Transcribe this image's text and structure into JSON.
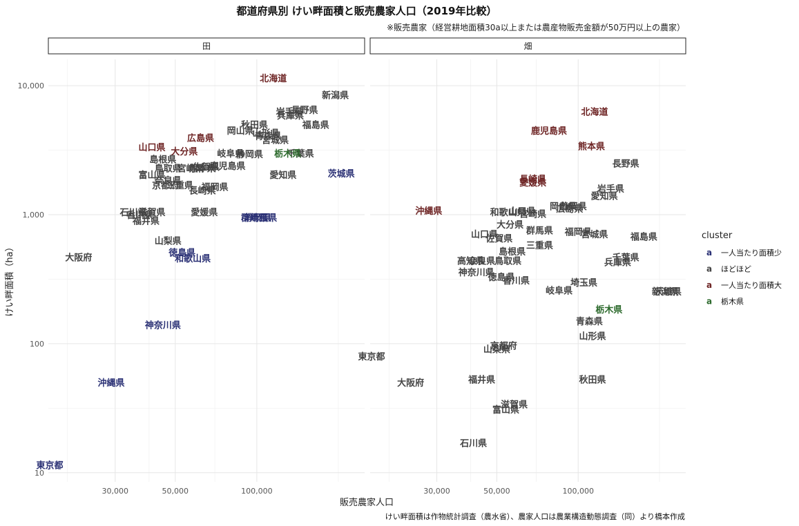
{
  "chart_data": {
    "type": "scatter",
    "title": "都道府県別 けい畔面積と販売農家人口（2019年比較）",
    "subtitle": "※販売農家（経営耕地面積30a以上または農産物販売金額が50万円以上の農家）",
    "caption": "けい畔面積は作物統計調査（農水省）、農家人口は農業構造動態調査（同）より橋本作成",
    "xlabel": "販売農家人口",
    "ylabel": "けい畔面積（ha）",
    "x_scale": "log",
    "y_scale": "log",
    "xlim": [
      17000,
      250000
    ],
    "ylim": [
      8.5,
      16000
    ],
    "x_ticks": [
      30000,
      50000,
      100000
    ],
    "x_tick_labels": [
      "30,000",
      "50,000",
      "100,000"
    ],
    "y_ticks": [
      10,
      100,
      1000,
      10000
    ],
    "y_tick_labels": [
      "10",
      "100",
      "1,000",
      "10,000"
    ],
    "grid": true,
    "legend": {
      "title": "cluster",
      "position": "right",
      "key_glyph": "a",
      "entries": [
        {
          "label": "一人当たり面積少",
          "color": "#2b3175"
        },
        {
          "label": "ほどほど",
          "color": "#444444"
        },
        {
          "label": "一人当たり面積大",
          "color": "#6e2525"
        },
        {
          "label": "栃木県",
          "color": "#2e6b2e"
        }
      ]
    },
    "facets": [
      {
        "name": "田",
        "points": [
          {
            "label": "北海道",
            "x": 115000,
            "y": 11500,
            "cluster": "一人当たり面積大"
          },
          {
            "label": "新潟県",
            "x": 195000,
            "y": 8500,
            "cluster": "ほどほど"
          },
          {
            "label": "長野県",
            "x": 150000,
            "y": 6500,
            "cluster": "ほどほど"
          },
          {
            "label": "岩手県",
            "x": 132000,
            "y": 6300,
            "cluster": "ほどほど"
          },
          {
            "label": "兵庫県",
            "x": 133000,
            "y": 5900,
            "cluster": "ほどほど"
          },
          {
            "label": "福島県",
            "x": 165000,
            "y": 5000,
            "cluster": "ほどほど"
          },
          {
            "label": "秋田県",
            "x": 98000,
            "y": 5000,
            "cluster": "ほどほど"
          },
          {
            "label": "岡山県",
            "x": 87000,
            "y": 4500,
            "cluster": "ほどほど"
          },
          {
            "label": "山形県",
            "x": 108000,
            "y": 4300,
            "cluster": "ほどほど"
          },
          {
            "label": "青森県",
            "x": 110000,
            "y": 4100,
            "cluster": "ほどほど"
          },
          {
            "label": "宮城県",
            "x": 117000,
            "y": 3800,
            "cluster": "ほどほど"
          },
          {
            "label": "広島県",
            "x": 62000,
            "y": 3950,
            "cluster": "一人当たり面積大"
          },
          {
            "label": "山口県",
            "x": 41000,
            "y": 3350,
            "cluster": "一人当たり面積大"
          },
          {
            "label": "大分県",
            "x": 54000,
            "y": 3100,
            "cluster": "一人当たり面積大"
          },
          {
            "label": "岐阜県",
            "x": 80000,
            "y": 3000,
            "cluster": "ほどほど"
          },
          {
            "label": "静岡県",
            "x": 94000,
            "y": 2950,
            "cluster": "ほどほど"
          },
          {
            "label": "千葉県",
            "x": 145000,
            "y": 3000,
            "cluster": "ほどほど"
          },
          {
            "label": "栃木県",
            "x": 130000,
            "y": 3000,
            "cluster": "栃木県"
          },
          {
            "label": "島根県",
            "x": 45000,
            "y": 2700,
            "cluster": "ほどほど"
          },
          {
            "label": "鹿児島県",
            "x": 78000,
            "y": 2400,
            "cluster": "ほどほど"
          },
          {
            "label": "佐賀県",
            "x": 65000,
            "y": 2350,
            "cluster": "ほどほど"
          },
          {
            "label": "鳥取県",
            "x": 47000,
            "y": 2300,
            "cluster": "ほどほど"
          },
          {
            "label": "熊本県",
            "x": 63000,
            "y": 2300,
            "cluster": "ほどほど"
          },
          {
            "label": "宮崎県",
            "x": 57000,
            "y": 2300,
            "cluster": "ほどほど"
          },
          {
            "label": "富山県",
            "x": 41000,
            "y": 2050,
            "cluster": "ほどほど"
          },
          {
            "label": "愛知県",
            "x": 125000,
            "y": 2050,
            "cluster": "ほどほど"
          },
          {
            "label": "茨城県",
            "x": 205000,
            "y": 2100,
            "cluster": "一人当たり面積少"
          },
          {
            "label": "奈良県",
            "x": 47000,
            "y": 1850,
            "cluster": "ほどほど"
          },
          {
            "label": "京都府",
            "x": 46000,
            "y": 1700,
            "cluster": "ほどほど"
          },
          {
            "label": "三重県",
            "x": 52000,
            "y": 1700,
            "cluster": "ほどほど"
          },
          {
            "label": "福岡県",
            "x": 70000,
            "y": 1650,
            "cluster": "ほどほど"
          },
          {
            "label": "長崎県",
            "x": 63000,
            "y": 1550,
            "cluster": "ほどほど"
          },
          {
            "label": "石川県",
            "x": 35000,
            "y": 1050,
            "cluster": "ほどほど"
          },
          {
            "label": "滋賀県",
            "x": 41000,
            "y": 1050,
            "cluster": "ほどほど"
          },
          {
            "label": "香川県",
            "x": 37000,
            "y": 1000,
            "cluster": "ほどほど"
          },
          {
            "label": "福井県",
            "x": 39000,
            "y": 900,
            "cluster": "ほどほど"
          },
          {
            "label": "愛媛県",
            "x": 64000,
            "y": 1050,
            "cluster": "ほどほど"
          },
          {
            "label": "群馬県",
            "x": 98000,
            "y": 950,
            "cluster": "一人当たり面積少"
          },
          {
            "label": "静岡県",
            "x": 101000,
            "y": 950,
            "cluster": "一人当たり面積少"
          },
          {
            "label": "埼玉県",
            "x": 106000,
            "y": 950,
            "cluster": "一人当たり面積少"
          },
          {
            "label": "山梨県",
            "x": 47000,
            "y": 630,
            "cluster": "ほどほど"
          },
          {
            "label": "徳島県",
            "x": 53000,
            "y": 510,
            "cluster": "一人当たり面積少"
          },
          {
            "label": "和歌山県",
            "x": 58000,
            "y": 460,
            "cluster": "一人当たり面積少"
          },
          {
            "label": "大阪府",
            "x": 22000,
            "y": 470,
            "cluster": "ほどほど"
          },
          {
            "label": "神奈川県",
            "x": 45000,
            "y": 140,
            "cluster": "一人当たり面積少"
          },
          {
            "label": "沖縄県",
            "x": 29000,
            "y": 50,
            "cluster": "一人当たり面積少"
          },
          {
            "label": "東京都",
            "x": 17200,
            "y": 11.5,
            "cluster": "一人当たり面積少"
          }
        ]
      },
      {
        "name": "畑",
        "points": [
          {
            "label": "北海道",
            "x": 115000,
            "y": 6300,
            "cluster": "一人当たり面積大"
          },
          {
            "label": "鹿児島県",
            "x": 78000,
            "y": 4500,
            "cluster": "一人当たり面積大"
          },
          {
            "label": "熊本県",
            "x": 112000,
            "y": 3400,
            "cluster": "一人当たり面積大"
          },
          {
            "label": "長野県",
            "x": 150000,
            "y": 2500,
            "cluster": "ほどほど"
          },
          {
            "label": "長崎県",
            "x": 68000,
            "y": 1900,
            "cluster": "一人当たり面積大"
          },
          {
            "label": "愛媛県",
            "x": 68000,
            "y": 1780,
            "cluster": "一人当たり面積大"
          },
          {
            "label": "岩手県",
            "x": 132000,
            "y": 1600,
            "cluster": "ほどほど"
          },
          {
            "label": "愛知県",
            "x": 125000,
            "y": 1400,
            "cluster": "ほどほど"
          },
          {
            "label": "岡山県",
            "x": 88000,
            "y": 1170,
            "cluster": "ほどほど"
          },
          {
            "label": "静岡県",
            "x": 96000,
            "y": 1170,
            "cluster": "ほどほど"
          },
          {
            "label": "広島県",
            "x": 93000,
            "y": 1120,
            "cluster": "ほどほど"
          },
          {
            "label": "沖縄県",
            "x": 28000,
            "y": 1080,
            "cluster": "一人当たり面積大"
          },
          {
            "label": "和歌山県",
            "x": 55000,
            "y": 1050,
            "cluster": "ほどほど"
          },
          {
            "label": "山口県",
            "x": 62000,
            "y": 1070,
            "cluster": "ほどほど"
          },
          {
            "label": "宮崎県",
            "x": 68000,
            "y": 1020,
            "cluster": "ほどほど"
          },
          {
            "label": "大分県",
            "x": 56000,
            "y": 840,
            "cluster": "ほどほど"
          },
          {
            "label": "群馬県",
            "x": 72000,
            "y": 760,
            "cluster": "ほどほど"
          },
          {
            "label": "山口県",
            "x": 45000,
            "y": 710,
            "cluster": "ほどほど"
          },
          {
            "label": "福岡県",
            "x": 100000,
            "y": 740,
            "cluster": "ほどほど"
          },
          {
            "label": "宮城県",
            "x": 115000,
            "y": 710,
            "cluster": "ほどほど"
          },
          {
            "label": "福島県",
            "x": 175000,
            "y": 680,
            "cluster": "ほどほど"
          },
          {
            "label": "佐賀県",
            "x": 51000,
            "y": 660,
            "cluster": "ほどほど"
          },
          {
            "label": "三重県",
            "x": 72000,
            "y": 580,
            "cluster": "ほどほど"
          },
          {
            "label": "島根県",
            "x": 57000,
            "y": 520,
            "cluster": "ほどほど"
          },
          {
            "label": "千葉県",
            "x": 150000,
            "y": 470,
            "cluster": "ほどほど"
          },
          {
            "label": "兵庫県",
            "x": 140000,
            "y": 430,
            "cluster": "ほどほど"
          },
          {
            "label": "高知県",
            "x": 40000,
            "y": 440,
            "cluster": "ほどほど"
          },
          {
            "label": "奈良県",
            "x": 44000,
            "y": 440,
            "cluster": "ほどほど"
          },
          {
            "label": "鳥取県",
            "x": 55000,
            "y": 440,
            "cluster": "ほどほど"
          },
          {
            "label": "神奈川県",
            "x": 42000,
            "y": 360,
            "cluster": "ほどほど"
          },
          {
            "label": "徳島県",
            "x": 52000,
            "y": 330,
            "cluster": "ほどほど"
          },
          {
            "label": "香川県",
            "x": 59000,
            "y": 310,
            "cluster": "ほどほど"
          },
          {
            "label": "埼玉県",
            "x": 105000,
            "y": 300,
            "cluster": "ほどほど"
          },
          {
            "label": "岐阜県",
            "x": 85000,
            "y": 260,
            "cluster": "ほどほど"
          },
          {
            "label": "新潟県",
            "x": 210000,
            "y": 255,
            "cluster": "ほどほど"
          },
          {
            "label": "茨城県",
            "x": 215000,
            "y": 255,
            "cluster": "ほどほど"
          },
          {
            "label": "栃木県",
            "x": 130000,
            "y": 185,
            "cluster": "栃木県"
          },
          {
            "label": "青森県",
            "x": 110000,
            "y": 150,
            "cluster": "ほどほど"
          },
          {
            "label": "山形県",
            "x": 113000,
            "y": 115,
            "cluster": "ほどほど"
          },
          {
            "label": "京都府",
            "x": 53000,
            "y": 97,
            "cluster": "ほどほど"
          },
          {
            "label": "山梨県",
            "x": 50000,
            "y": 91,
            "cluster": "ほどほど"
          },
          {
            "label": "東京都",
            "x": 17200,
            "y": 80,
            "cluster": "ほどほど"
          },
          {
            "label": "大阪府",
            "x": 24000,
            "y": 50,
            "cluster": "ほどほど"
          },
          {
            "label": "福井県",
            "x": 44000,
            "y": 53,
            "cluster": "ほどほど"
          },
          {
            "label": "秋田県",
            "x": 113000,
            "y": 53,
            "cluster": "ほどほど"
          },
          {
            "label": "滋賀県",
            "x": 58000,
            "y": 34,
            "cluster": "ほどほど"
          },
          {
            "label": "富山県",
            "x": 54000,
            "y": 31,
            "cluster": "ほどほど"
          },
          {
            "label": "石川県",
            "x": 41000,
            "y": 17,
            "cluster": "ほどほど"
          }
        ]
      }
    ]
  }
}
